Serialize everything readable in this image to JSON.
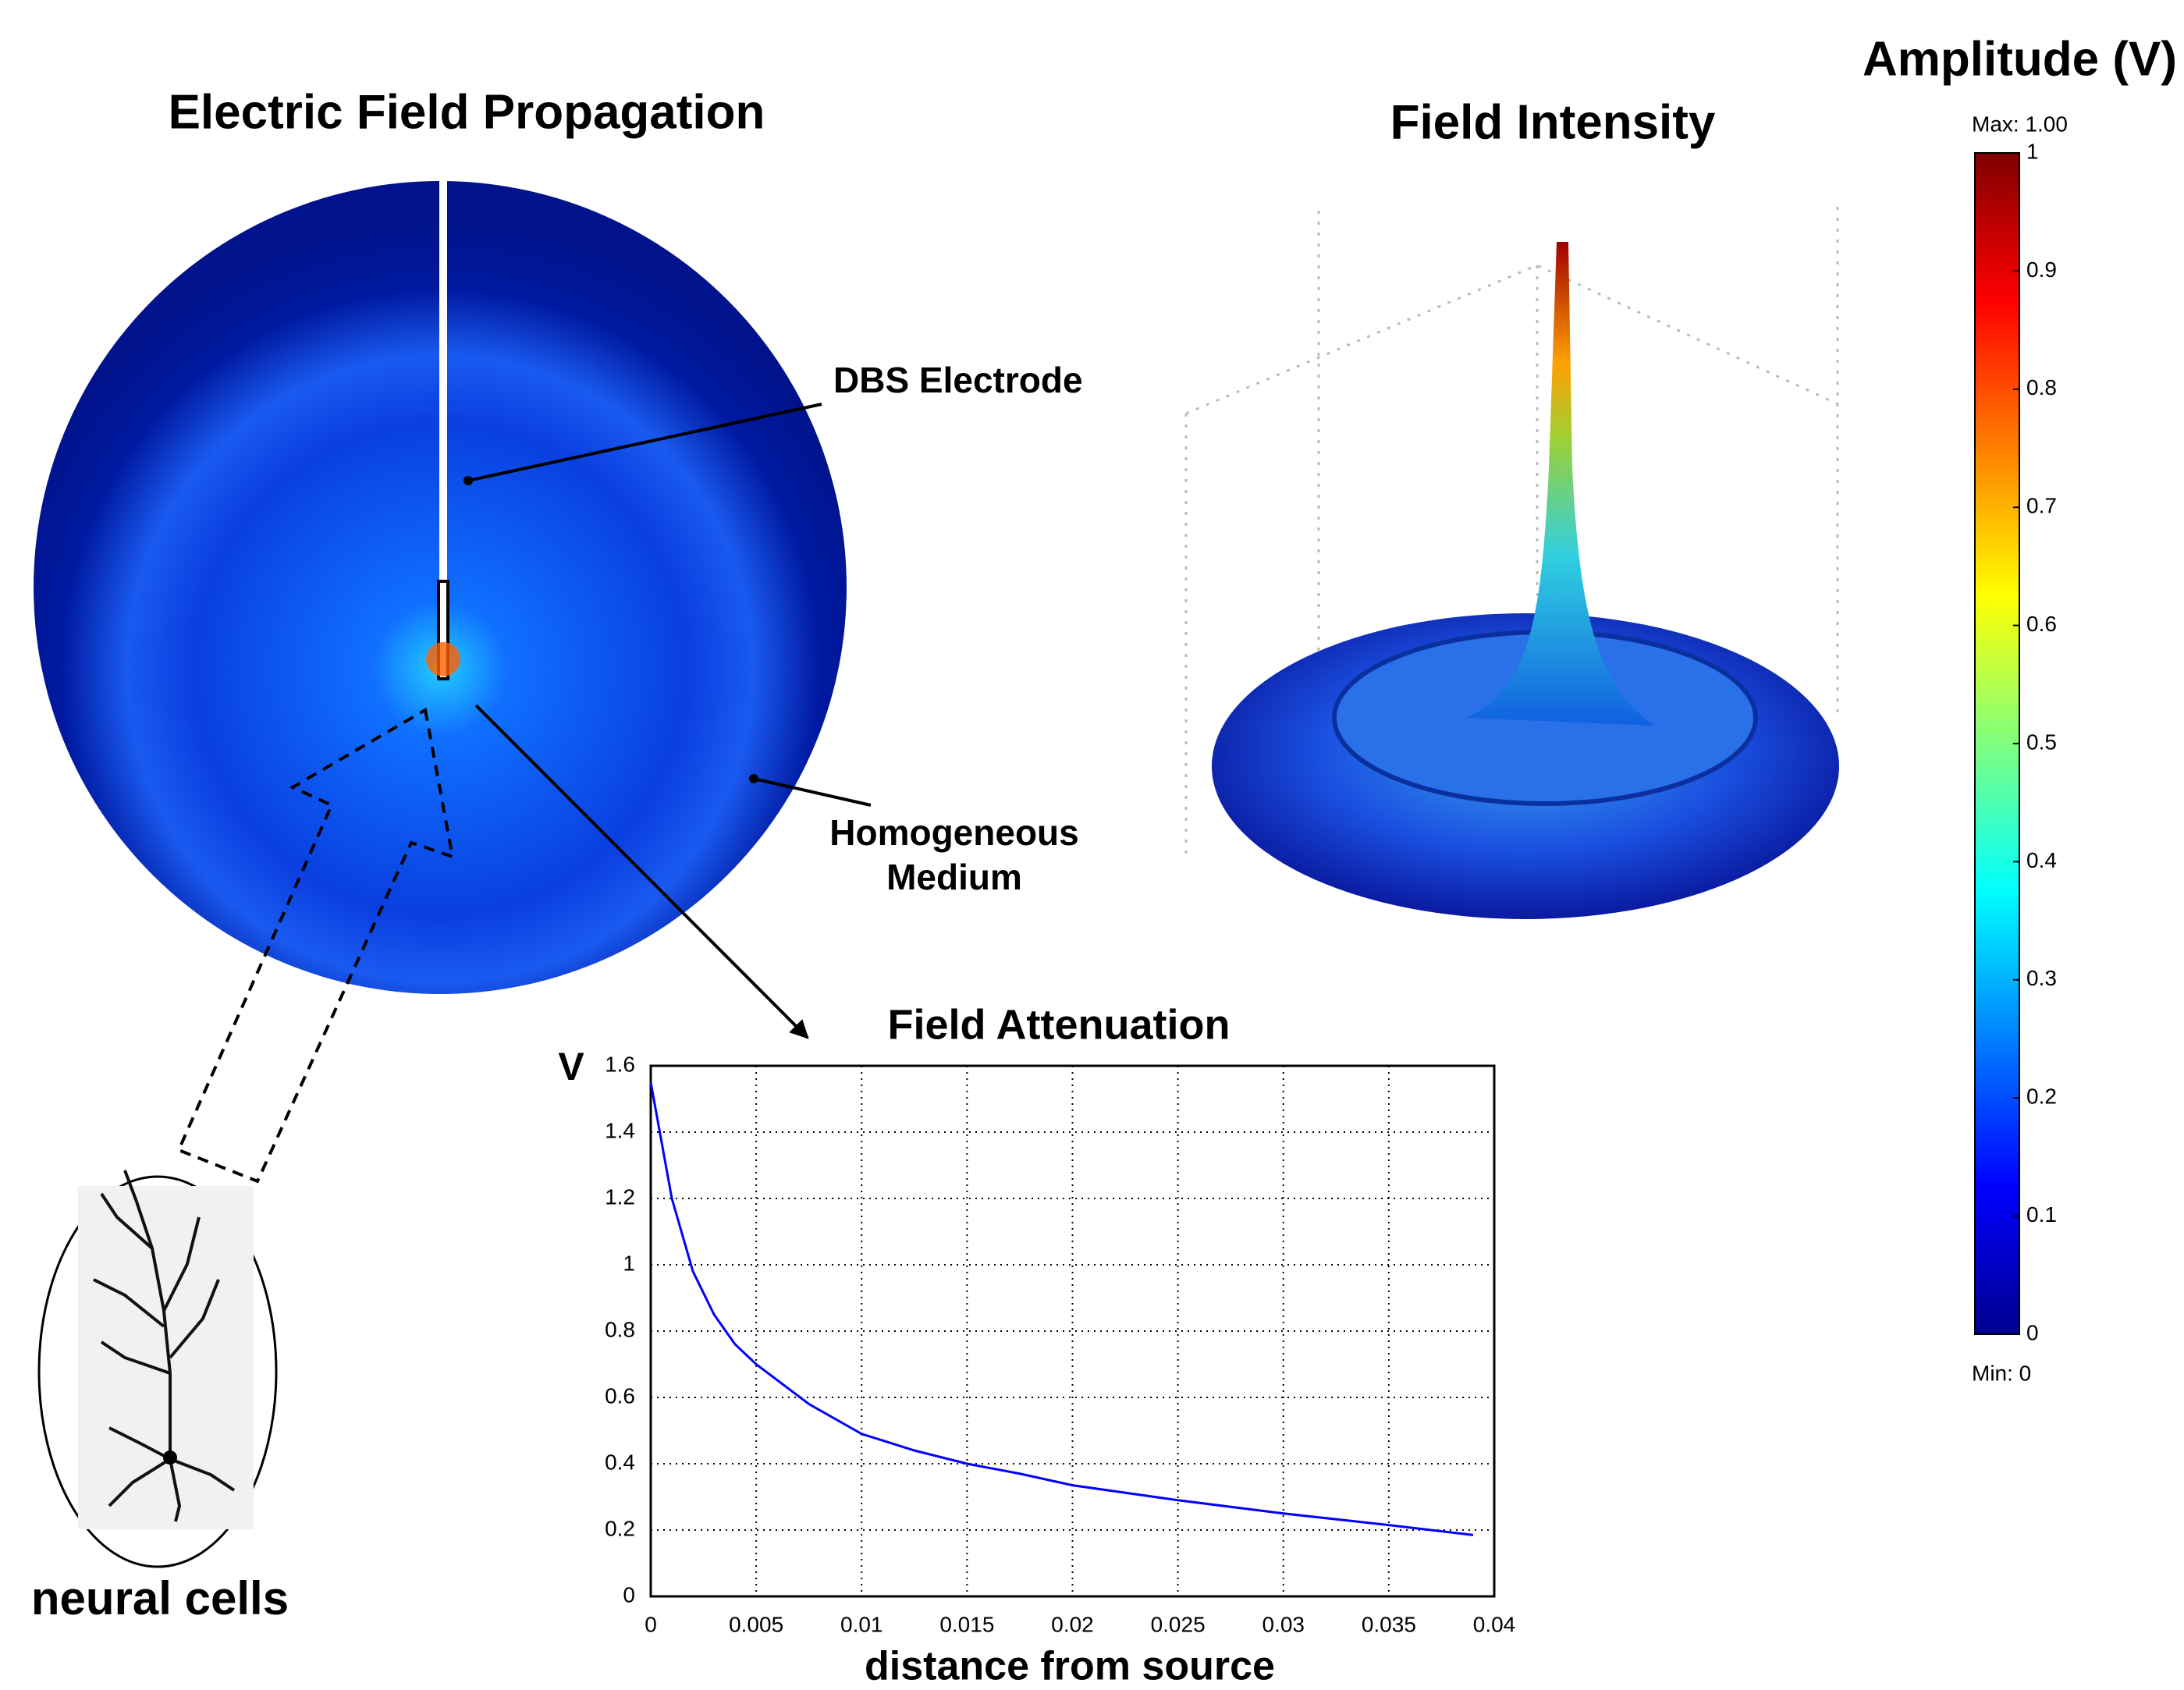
{
  "figure": {
    "left_title": "Electric Field Propagation",
    "electrode_label": "DBS Electrode",
    "medium_label": [
      "Homogeneous",
      "Medium"
    ],
    "cells_label": "neural cells",
    "right_title": "Field Intensity"
  },
  "colorbar": {
    "title": "Amplitude (V)",
    "max_label": "Max: 1.00",
    "min_label": "Min: 0",
    "lim": [
      0,
      1
    ],
    "ticks": [
      0,
      0.1,
      0.2,
      0.3,
      0.4,
      0.5,
      0.6,
      0.7,
      0.8,
      0.9,
      1
    ]
  },
  "chart_data": {
    "type": "line",
    "title": "Field Attenuation",
    "x_label": "distance from source",
    "y_label": "V",
    "color": "#0000ff",
    "grid": true,
    "x": [
      0,
      0.001,
      0.002,
      0.003,
      0.004,
      0.005,
      0.0075,
      0.01,
      0.0125,
      0.015,
      0.0175,
      0.02,
      0.025,
      0.03,
      0.035,
      0.039
    ],
    "values": [
      1.55,
      1.2,
      0.98,
      0.85,
      0.76,
      0.7,
      0.58,
      0.49,
      0.44,
      0.4,
      0.37,
      0.335,
      0.29,
      0.25,
      0.215,
      0.185
    ],
    "xlim": [
      0,
      0.04
    ],
    "xticks": [
      0,
      0.005,
      0.01,
      0.015,
      0.02,
      0.025,
      0.03,
      0.035,
      0.04
    ],
    "ylim": [
      0,
      1.6
    ],
    "yticks": [
      0,
      0.2,
      0.4,
      0.6,
      0.8,
      1,
      1.2,
      1.4,
      1.6
    ]
  }
}
